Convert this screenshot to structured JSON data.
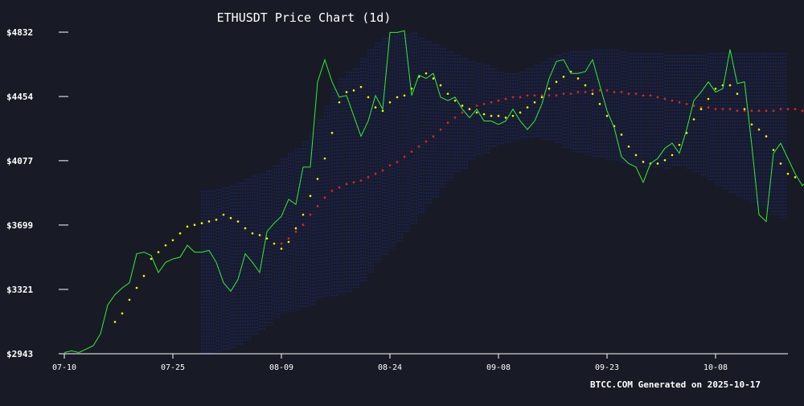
{
  "chart_data": {
    "type": "line",
    "title": "ETHUSDT Price Chart (1d)",
    "footer": "BTCC.COM Generated on 2025-10-17",
    "xlabel": "",
    "ylabel": "",
    "x_start": "2025-07-10",
    "x_end": "2025-10-16",
    "ylim": [
      2943,
      4832
    ],
    "xlim_days": [
      0,
      99.3
    ],
    "y_ticks": [
      {
        "value": 4832,
        "label": "$4832"
      },
      {
        "value": 4454,
        "label": "$4454"
      },
      {
        "value": 4077,
        "label": "$4077"
      },
      {
        "value": 3699,
        "label": "$3699"
      },
      {
        "value": 3321,
        "label": "$3321"
      },
      {
        "value": 2943,
        "label": "$2943"
      }
    ],
    "x_ticks": [
      {
        "date": "2025-07-10",
        "label": "07-10"
      },
      {
        "date": "2025-07-25",
        "label": "07-25"
      },
      {
        "date": "2025-08-09",
        "label": "08-09"
      },
      {
        "date": "2025-08-24",
        "label": "08-24"
      },
      {
        "date": "2025-09-08",
        "label": "09-08"
      },
      {
        "date": "2025-09-23",
        "label": "09-23"
      },
      {
        "date": "2025-10-08",
        "label": "10-08"
      }
    ],
    "grid": false,
    "colors": {
      "background": "#181b25",
      "price": "#33ee33",
      "ma_short": "#ffff00",
      "ma_long": "#dd2222",
      "bands": "#1d2b8f"
    },
    "series": [
      {
        "key": "price",
        "style": "line",
        "values": [
          2950,
          2960,
          2950,
          2970,
          2990,
          3060,
          3230,
          3290,
          3330,
          3360,
          3530,
          3540,
          3520,
          3420,
          3480,
          3500,
          3510,
          3580,
          3540,
          3540,
          3550,
          3480,
          3360,
          3310,
          3380,
          3530,
          3480,
          3420,
          3660,
          3710,
          3750,
          3850,
          3820,
          4040,
          4040,
          4540,
          4670,
          4540,
          4450,
          4460,
          4340,
          4220,
          4310,
          4460,
          4380,
          4830,
          4830,
          4840,
          4460,
          4580,
          4560,
          4590,
          4450,
          4430,
          4450,
          4380,
          4330,
          4380,
          4310,
          4310,
          4290,
          4310,
          4380,
          4310,
          4260,
          4310,
          4410,
          4560,
          4660,
          4670,
          4590,
          4590,
          4600,
          4670,
          4520,
          4370,
          4270,
          4100,
          4060,
          4040,
          3950,
          4060,
          4090,
          4150,
          4180,
          4120,
          4260,
          4430,
          4480,
          4540,
          4480,
          4500,
          4730,
          4530,
          4540,
          4170,
          3760,
          3720,
          4120,
          4180,
          4090,
          4000,
          3930,
          3970,
          3870,
          3870
        ],
        "x_start_day": 0
      },
      {
        "key": "ma_short",
        "style": "dots",
        "x_start_day": 7,
        "values": [
          3130,
          3180,
          3260,
          3330,
          3400,
          3500,
          3540,
          3580,
          3610,
          3650,
          3690,
          3700,
          3710,
          3720,
          3730,
          3760,
          3740,
          3720,
          3680,
          3650,
          3640,
          3620,
          3590,
          3560,
          3600,
          3680,
          3760,
          3870,
          3970,
          4090,
          4240,
          4420,
          4480,
          4490,
          4510,
          4450,
          4390,
          4370,
          4420,
          4450,
          4460,
          4500,
          4570,
          4590,
          4560,
          4520,
          4470,
          4430,
          4400,
          4380,
          4360,
          4350,
          4340,
          4340,
          4330,
          4340,
          4360,
          4390,
          4420,
          4450,
          4500,
          4540,
          4570,
          4600,
          4560,
          4520,
          4470,
          4410,
          4340,
          4280,
          4230,
          4160,
          4110,
          4070,
          4060,
          4060,
          4080,
          4110,
          4170,
          4240,
          4320,
          4380,
          4440,
          4500,
          4520,
          4520,
          4470,
          4380,
          4290,
          4260,
          4220,
          4140,
          4060,
          4000,
          3980
        ]
      },
      {
        "key": "ma_long",
        "style": "dots",
        "x_start_day": 30,
        "values": [
          3590,
          3620,
          3660,
          3700,
          3760,
          3810,
          3860,
          3900,
          3920,
          3940,
          3950,
          3960,
          3980,
          4000,
          4020,
          4050,
          4070,
          4100,
          4130,
          4160,
          4190,
          4220,
          4260,
          4300,
          4330,
          4360,
          4380,
          4400,
          4410,
          4420,
          4430,
          4440,
          4450,
          4450,
          4460,
          4460,
          4460,
          4460,
          4460,
          4470,
          4470,
          4480,
          4480,
          4490,
          4490,
          4490,
          4480,
          4480,
          4470,
          4470,
          4460,
          4460,
          4450,
          4440,
          4430,
          4420,
          4410,
          4400,
          4390,
          4390,
          4380,
          4380,
          4380,
          4370,
          4370,
          4370,
          4370,
          4370,
          4370,
          4380,
          4380,
          4380,
          4370,
          4360,
          4350,
          4340,
          4330,
          4300,
          4280,
          4260,
          4240,
          4230,
          4210
        ]
      },
      {
        "key": "bands",
        "style": "vertical-bands",
        "x_start_day": 19,
        "upper": [
          3900,
          3900,
          3910,
          3920,
          3930,
          3950,
          3970,
          3990,
          4000,
          4020,
          4050,
          4090,
          4120,
          4150,
          4190,
          4240,
          4320,
          4400,
          4500,
          4560,
          4600,
          4620,
          4680,
          4730,
          4770,
          4800,
          4810,
          4820,
          4820,
          4830,
          4800,
          4780,
          4760,
          4740,
          4720,
          4700,
          4680,
          4660,
          4650,
          4640,
          4620,
          4600,
          4590,
          4590,
          4600,
          4620,
          4640,
          4660,
          4680,
          4700,
          4710,
          4720,
          4720,
          4720,
          4730,
          4730,
          4730,
          4730,
          4720,
          4710,
          4710,
          4710,
          4710,
          4710,
          4700,
          4700,
          4700,
          4700,
          4700,
          4700,
          4710,
          4710,
          4710,
          4710,
          4710,
          4710,
          4710,
          4710,
          4710,
          4710,
          4710
        ],
        "lower": [
          2940,
          2940,
          2950,
          2960,
          2970,
          2990,
          3020,
          3050,
          3080,
          3110,
          3150,
          3180,
          3190,
          3200,
          3210,
          3230,
          3260,
          3280,
          3280,
          3290,
          3300,
          3330,
          3360,
          3420,
          3480,
          3520,
          3560,
          3600,
          3650,
          3700,
          3760,
          3820,
          3860,
          3920,
          3960,
          4000,
          4030,
          4080,
          4100,
          4120,
          4150,
          4170,
          4180,
          4190,
          4200,
          4210,
          4210,
          4200,
          4190,
          4170,
          4150,
          4130,
          4120,
          4110,
          4100,
          4090,
          4080,
          4070,
          4060,
          4050,
          4040,
          4030,
          4030,
          4030,
          4030,
          4040,
          4040,
          4030,
          4010,
          3980,
          3960,
          3930,
          3910,
          3880,
          3860,
          3840,
          3820,
          3800,
          3780,
          3760,
          3740
        ]
      }
    ]
  }
}
